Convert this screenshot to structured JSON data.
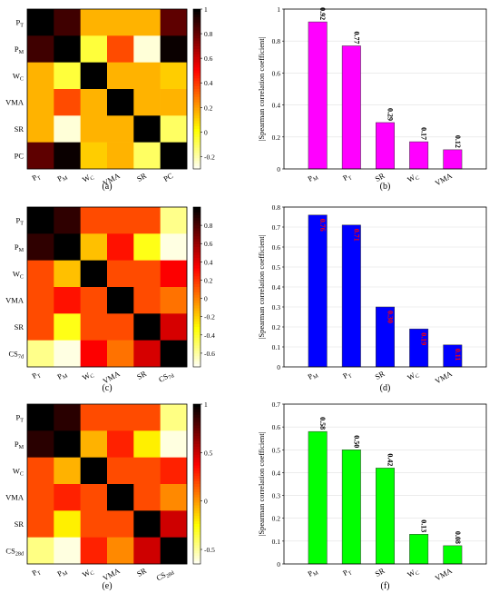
{
  "chart_data": [
    {
      "type": "heatmap",
      "panel": "(a)",
      "rows": [
        "P_T",
        "P_M",
        "W_C",
        "VMA",
        "SR",
        "PC"
      ],
      "cols": [
        "P_T",
        "P_M",
        "W_C",
        "VMA",
        "SR",
        "PC"
      ],
      "values": [
        [
          1,
          0.88,
          0.17,
          0.17,
          0.17,
          0.82
        ],
        [
          0.88,
          1,
          -0.05,
          0.37,
          -0.25,
          0.98
        ],
        [
          0.17,
          -0.05,
          1,
          0.17,
          0.17,
          0.12
        ],
        [
          0.17,
          0.37,
          0.17,
          1,
          0.17,
          0.17
        ],
        [
          0.17,
          -0.25,
          0.17,
          0.17,
          1,
          -0.1
        ],
        [
          0.82,
          0.98,
          0.12,
          0.17,
          -0.1,
          1
        ]
      ],
      "colorbar_ticks": [
        1,
        0.8,
        0.6,
        0.4,
        0.2,
        0,
        -0.2
      ],
      "colorbar_range": [
        -0.3,
        1
      ]
    },
    {
      "type": "bar",
      "panel": "(b)",
      "categories": [
        "P_M",
        "P_T",
        "SR",
        "W_C",
        "VMA"
      ],
      "values": [
        0.92,
        0.77,
        0.29,
        0.17,
        0.12
      ],
      "value_labels": [
        "0.92",
        "0.77",
        "0.29",
        "0.17",
        "0.12"
      ],
      "ylabel": "|Spearman correlation coefficient|",
      "ylim": [
        0,
        1
      ],
      "yticks": [
        "0",
        "0.2",
        "0.4",
        "0.6",
        "0.8",
        "1"
      ],
      "bar_color": "#ff00ff",
      "label_color": "#000000"
    },
    {
      "type": "heatmap",
      "panel": "(c)",
      "rows": [
        "P_T",
        "P_M",
        "W_C",
        "VMA",
        "SR",
        "CS_7d"
      ],
      "cols": [
        "P_T",
        "P_M",
        "W_C",
        "VMA",
        "SR",
        "CS_7d"
      ],
      "values": [
        [
          1,
          0.88,
          0.15,
          0.15,
          0.15,
          -0.55
        ],
        [
          0.88,
          1,
          -0.15,
          0.3,
          -0.35,
          -0.7
        ],
        [
          0.15,
          -0.15,
          1,
          0.15,
          0.15,
          0.35
        ],
        [
          0.15,
          0.3,
          0.15,
          1,
          0.15,
          0.05
        ],
        [
          0.15,
          -0.35,
          0.15,
          0.15,
          1,
          0.45
        ],
        [
          -0.55,
          -0.7,
          0.35,
          0.05,
          0.45,
          1
        ]
      ],
      "colorbar_ticks": [
        0.8,
        0.6,
        0.4,
        0.2,
        0,
        -0.2,
        -0.4,
        -0.6
      ],
      "colorbar_range": [
        -0.75,
        1
      ]
    },
    {
      "type": "bar",
      "panel": "(d)",
      "categories": [
        "P_M",
        "P_T",
        "SR",
        "W_C",
        "VMA"
      ],
      "values": [
        0.76,
        0.71,
        0.3,
        0.19,
        0.11
      ],
      "value_labels": [
        "0.76",
        "0.71",
        "0.30",
        "0.19",
        "0.11"
      ],
      "ylabel": "|Spearman correlation coefficient|",
      "ylim": [
        0,
        0.8
      ],
      "yticks": [
        "0",
        "0.1",
        "0.2",
        "0.3",
        "0.4",
        "0.5",
        "0.6",
        "0.7",
        "0.8"
      ],
      "bar_color": "#0000ff",
      "label_color": "#ff0000"
    },
    {
      "type": "heatmap",
      "panel": "(e)",
      "rows": [
        "P_T",
        "P_M",
        "W_C",
        "VMA",
        "SR",
        "CS_28d"
      ],
      "cols": [
        "P_T",
        "P_M",
        "W_C",
        "VMA",
        "SR",
        "CS_28d"
      ],
      "values": [
        [
          1,
          0.9,
          0.2,
          0.2,
          0.2,
          -0.45
        ],
        [
          0.9,
          1,
          -0.05,
          0.3,
          -0.2,
          -0.6
        ],
        [
          0.2,
          -0.05,
          1,
          0.2,
          0.2,
          0.3
        ],
        [
          0.2,
          0.3,
          0.2,
          1,
          0.2,
          0.05
        ],
        [
          0.2,
          -0.2,
          0.2,
          0.2,
          1,
          0.5
        ],
        [
          -0.45,
          -0.6,
          0.3,
          0.05,
          0.5,
          1
        ]
      ],
      "colorbar_ticks": [
        1,
        0.5,
        0,
        -0.5
      ],
      "colorbar_range": [
        -0.65,
        1
      ]
    },
    {
      "type": "bar",
      "panel": "(f)",
      "categories": [
        "P_M",
        "P_T",
        "SR",
        "W_C",
        "VMA"
      ],
      "values": [
        0.58,
        0.5,
        0.42,
        0.13,
        0.08
      ],
      "value_labels": [
        "0.58",
        "0.50",
        "0.42",
        "0.13",
        "0.08"
      ],
      "ylabel": "|Spearman correlation coefficient|",
      "ylim": [
        0,
        0.7
      ],
      "yticks": [
        "0",
        "0.1",
        "0.2",
        "0.3",
        "0.4",
        "0.5",
        "0.6",
        "0.7"
      ],
      "bar_color": "#00ff00",
      "label_color": "#000000"
    }
  ]
}
